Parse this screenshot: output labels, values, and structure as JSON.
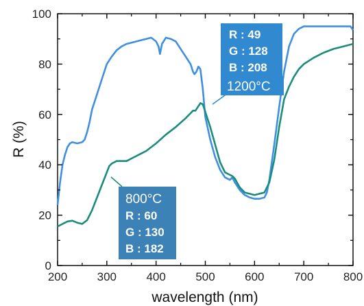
{
  "chart_data": {
    "type": "line",
    "xlabel": "wavelength (nm)",
    "ylabel": "R (%)",
    "xlim": [
      200,
      800
    ],
    "ylim": [
      0,
      100
    ],
    "xticks": [
      "200",
      "300",
      "400",
      "500",
      "600",
      "700",
      "800"
    ],
    "yticks": [
      "0",
      "20",
      "40",
      "60",
      "80",
      "100"
    ],
    "grid": false,
    "series": [
      {
        "name": "1200°C",
        "color": "#3f8fe0",
        "x": [
          200,
          205,
          210,
          215,
          220,
          225,
          230,
          240,
          250,
          255,
          260,
          265,
          270,
          280,
          290,
          300,
          310,
          320,
          330,
          340,
          350,
          360,
          370,
          380,
          390,
          400,
          405,
          408,
          412,
          420,
          430,
          440,
          450,
          460,
          470,
          475,
          478,
          482,
          486,
          490,
          495,
          500,
          510,
          520,
          530,
          540,
          550,
          555,
          560,
          570,
          580,
          590,
          600,
          610,
          620,
          625,
          630,
          640,
          650,
          660,
          670,
          680,
          690,
          700,
          710,
          720,
          740,
          760,
          780,
          795,
          800
        ],
        "y": [
          24,
          33,
          40,
          44,
          47,
          48.5,
          49,
          48.5,
          49,
          50,
          53,
          57,
          62,
          68,
          74,
          80,
          83,
          85.5,
          87,
          88,
          88.5,
          89,
          89.5,
          90,
          90.5,
          89,
          87,
          84,
          88,
          90.5,
          90,
          89,
          86,
          83,
          80,
          77,
          76,
          77,
          79,
          78,
          70,
          59,
          50,
          43,
          38,
          35,
          34,
          35,
          33,
          30,
          28,
          27,
          26.5,
          26.5,
          27,
          29,
          34,
          48,
          63,
          77,
          87,
          92,
          94,
          95,
          95,
          95,
          95,
          95,
          95,
          95,
          93.5
        ]
      },
      {
        "name": "800°C",
        "color": "#1a8c7c",
        "x": [
          200,
          210,
          220,
          230,
          240,
          250,
          260,
          270,
          280,
          290,
          300,
          305,
          310,
          320,
          330,
          340,
          345,
          350,
          360,
          370,
          380,
          390,
          400,
          420,
          440,
          460,
          470,
          475,
          480,
          485,
          490,
          495,
          500,
          510,
          520,
          530,
          540,
          550,
          555,
          560,
          570,
          580,
          590,
          600,
          610,
          620,
          630,
          640,
          650,
          660,
          670,
          680,
          690,
          700,
          720,
          740,
          760,
          780,
          800
        ],
        "y": [
          15.5,
          16.5,
          17.5,
          17.8,
          17,
          16.5,
          18,
          22,
          27,
          32,
          37,
          39.5,
          40.5,
          41.5,
          41.5,
          41.5,
          42,
          42.5,
          43.5,
          44.5,
          45.5,
          47,
          48.5,
          52,
          55,
          58.5,
          60.5,
          61.5,
          61.5,
          63,
          64.5,
          64,
          61,
          55,
          48,
          41,
          37,
          36,
          35.5,
          34.5,
          31,
          29,
          28.5,
          28,
          28.5,
          29,
          33,
          42,
          55,
          66,
          71,
          75,
          78,
          80,
          82.5,
          84.5,
          86,
          87,
          88
        ]
      }
    ],
    "annotations": [
      {
        "lines": [
          "R : 49",
          "G : 128",
          "B : 208"
        ],
        "temperature": "1200°C",
        "fill": "#3189d0"
      },
      {
        "temperature": "800°C",
        "lines": [
          "R : 60",
          "G : 130",
          "B : 182"
        ],
        "fill": "#3d82b6"
      }
    ]
  }
}
